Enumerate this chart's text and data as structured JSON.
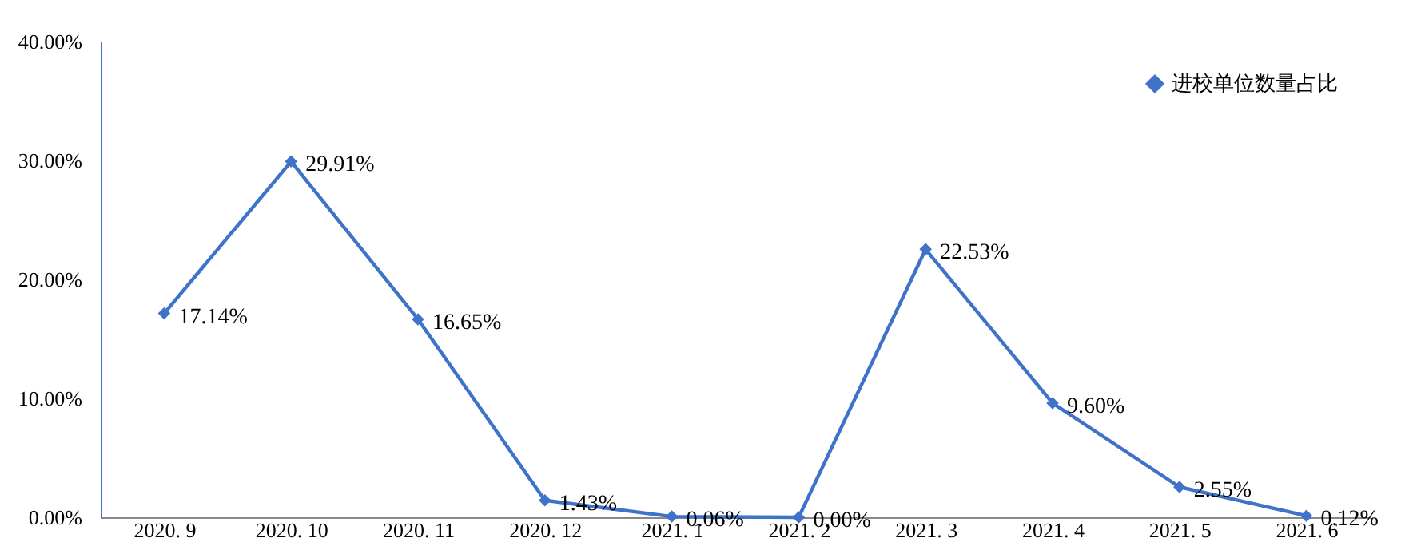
{
  "chart_data": {
    "type": "line",
    "categories": [
      "2020. 9",
      "2020. 10",
      "2020. 11",
      "2020. 12",
      "2021. 1",
      "2021. 2",
      "2021. 3",
      "2021. 4",
      "2021. 5",
      "2021. 6"
    ],
    "series": [
      {
        "name": "进校单位数量占比",
        "color": "#3f72c9",
        "values": [
          17.14,
          29.91,
          16.65,
          1.43,
          0.06,
          0.0,
          22.53,
          9.6,
          2.55,
          0.12
        ],
        "value_labels": [
          "17.14%",
          "29.91%",
          "16.65%",
          "1.43%",
          "0.06%",
          "0.00%",
          "22.53%",
          "9.60%",
          "2.55%",
          "0.12%"
        ]
      }
    ],
    "ylim": [
      0,
      40
    ],
    "yticks": [
      {
        "value": 0,
        "label": "0.00%"
      },
      {
        "value": 10,
        "label": "10.00%"
      },
      {
        "value": 20,
        "label": "20.00%"
      },
      {
        "value": 30,
        "label": "30.00%"
      },
      {
        "value": 40,
        "label": "40.00%"
      }
    ],
    "marker": "diamond",
    "line_style": "solid",
    "grid": false,
    "legend": "top right"
  }
}
